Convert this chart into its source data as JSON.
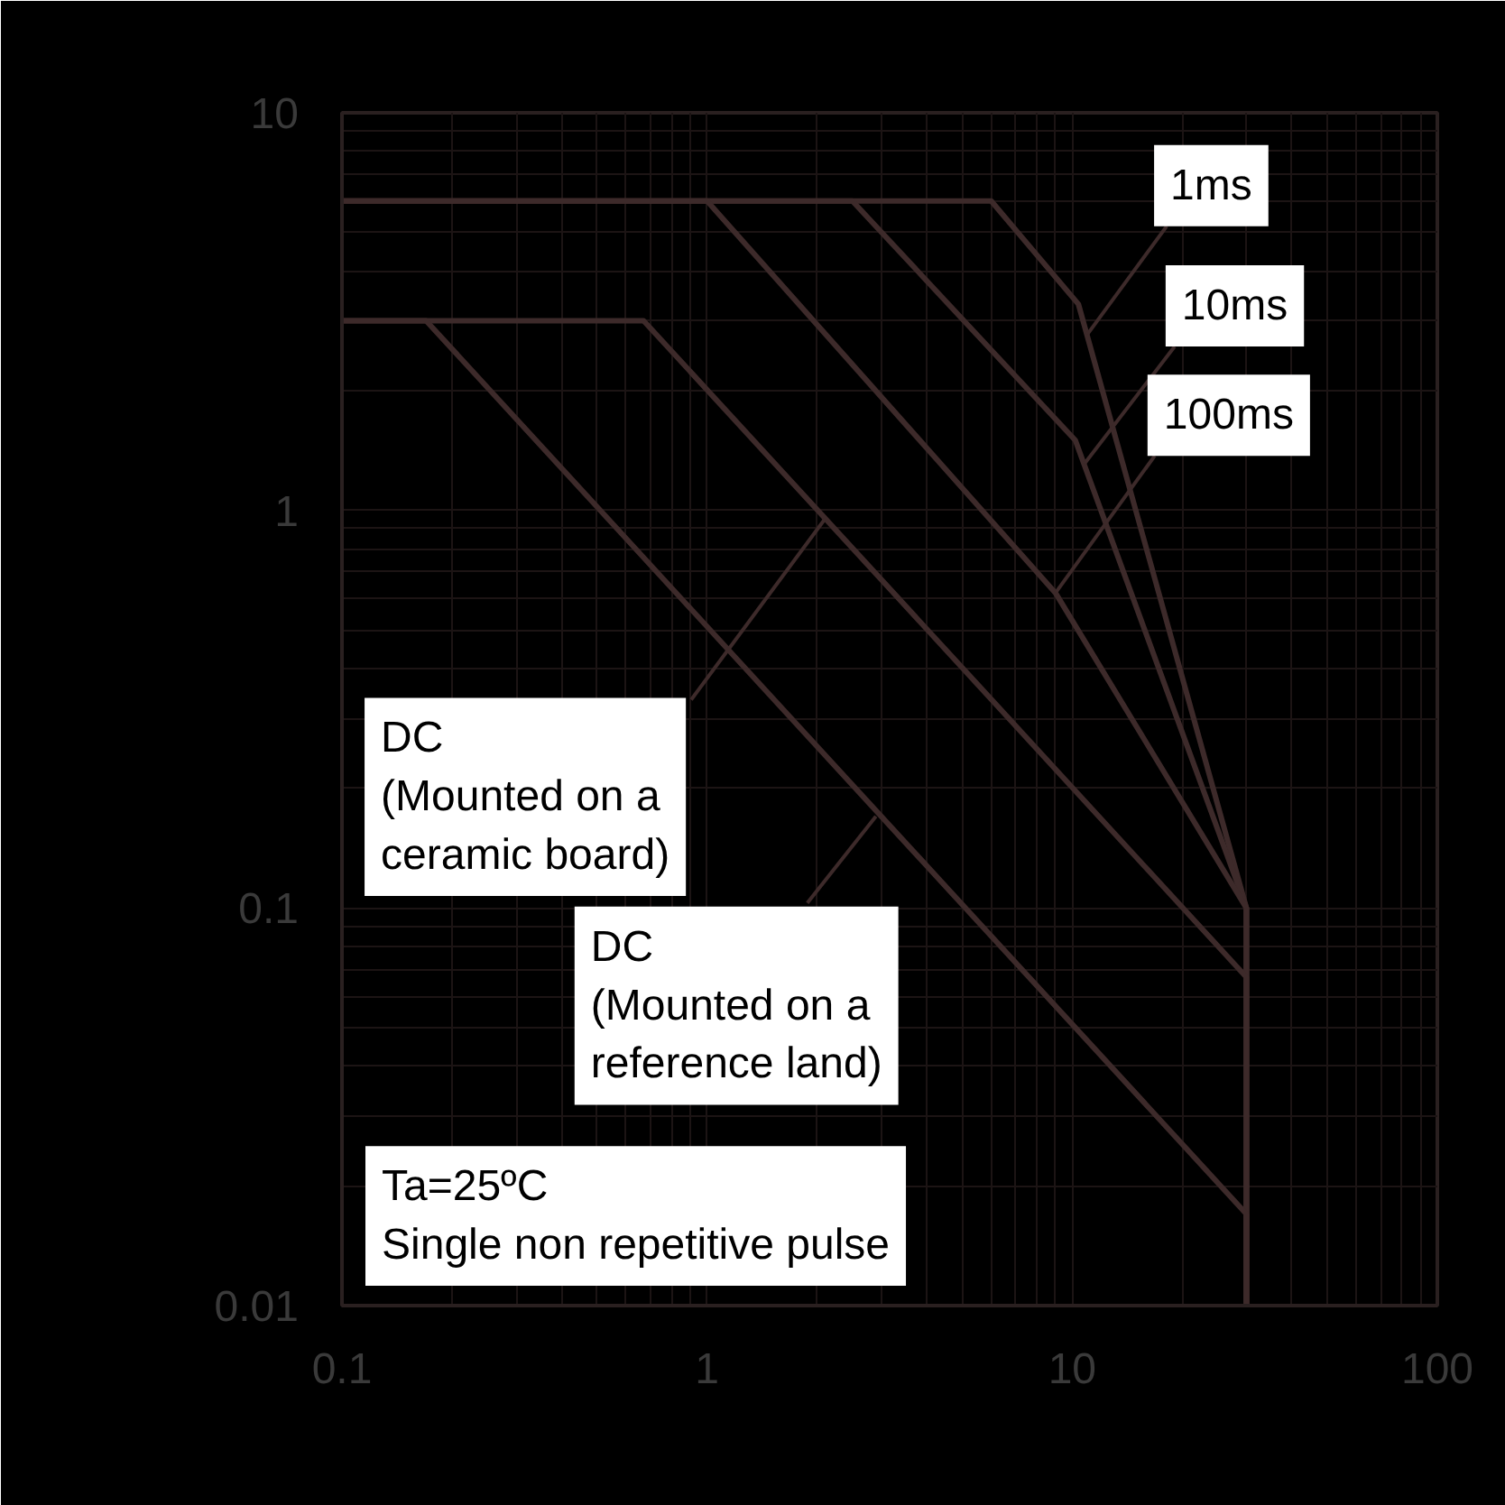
{
  "chart_data": {
    "type": "line",
    "log": "xy",
    "xlim": [
      0.1,
      100
    ],
    "ylim": [
      0.01,
      10
    ],
    "xticks": [
      0.1,
      1,
      10,
      100
    ],
    "yticks": [
      0.01,
      0.1,
      1,
      10
    ],
    "grid": true,
    "line_style": "solid",
    "series": [
      {
        "color": "#3d2a2a",
        "x": [
          0.1,
          6,
          10.4,
          30,
          30
        ],
        "values": [
          6,
          6,
          3.3,
          0.1,
          0.01
        ]
      },
      {
        "color": "#3d2a2a",
        "x": [
          0.1,
          2.5,
          10.2,
          30,
          30
        ],
        "values": [
          6,
          6,
          1.5,
          0.1,
          0.01
        ]
      },
      {
        "color": "#3d2a2a",
        "x": [
          0.1,
          1,
          9,
          30,
          30
        ],
        "values": [
          6,
          6,
          0.62,
          0.1,
          0.01
        ]
      },
      {
        "color": "#3d2a2a",
        "x": [
          0.1,
          0.67,
          30,
          30
        ],
        "values": [
          3,
          3,
          0.067,
          0.01
        ]
      },
      {
        "color": "#3d2a2a",
        "x": [
          0.1,
          0.17,
          30,
          30
        ],
        "values": [
          3,
          3,
          0.017,
          0.01
        ]
      }
    ],
    "annotations": [
      {
        "text": "1ms",
        "x": 11,
        "y": 2.77
      },
      {
        "text": "10ms",
        "x": 10.8,
        "y": 1.31
      },
      {
        "text": "100ms",
        "x": 9,
        "y": 0.62
      },
      {
        "text": "DC\n(Mounted on a\nceramic board)",
        "x": 2.1,
        "y": 0.95
      },
      {
        "text": "DC\n(Mounted on a\nreference land)",
        "x": 2.9,
        "y": 0.17
      },
      "Ta=25ºC\nSingle non repetitive pulse"
    ]
  }
}
